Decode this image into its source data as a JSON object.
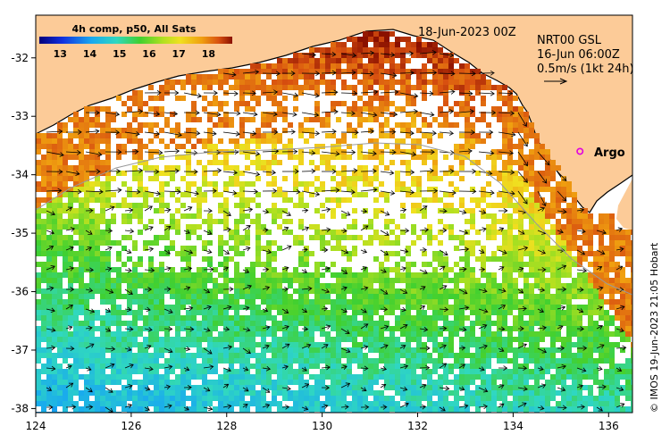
{
  "map": {
    "date_label": "18-Jun-2023 00Z",
    "current_source": "NRT00 GSL",
    "current_time": "16-Jun 06:00Z",
    "velocity_scale_label": "0.5m/s (1kt 24h)",
    "argo_label": "Argo",
    "credit": "© IMOS 19-Jun-2023 21:05 Hobart"
  },
  "colorbar": {
    "title": "4h comp, p50, All Sats",
    "ticks": [
      "13",
      "14",
      "15",
      "16",
      "17",
      "18"
    ],
    "range": [
      12.3,
      18.8
    ]
  },
  "axes": {
    "lon_ticks": [
      124,
      126,
      128,
      130,
      132,
      134,
      136
    ],
    "lat_ticks": [
      -32,
      -33,
      -34,
      -35,
      -36,
      -37,
      -38
    ],
    "lon_range": [
      124,
      136.5
    ],
    "lat_range": [
      -38.07,
      -31.27
    ]
  },
  "colors": {
    "land": "#fccb98",
    "sea_cold": "#1a50c8",
    "sea_cool": "#20b8c8",
    "sea_mid": "#40c830",
    "sea_warm": "#d8d820",
    "sea_hot": "#e08a18",
    "coastline": "#000000",
    "argo": "#e000e0"
  },
  "argo_float": {
    "lon": 135.4,
    "lat": -33.6
  }
}
